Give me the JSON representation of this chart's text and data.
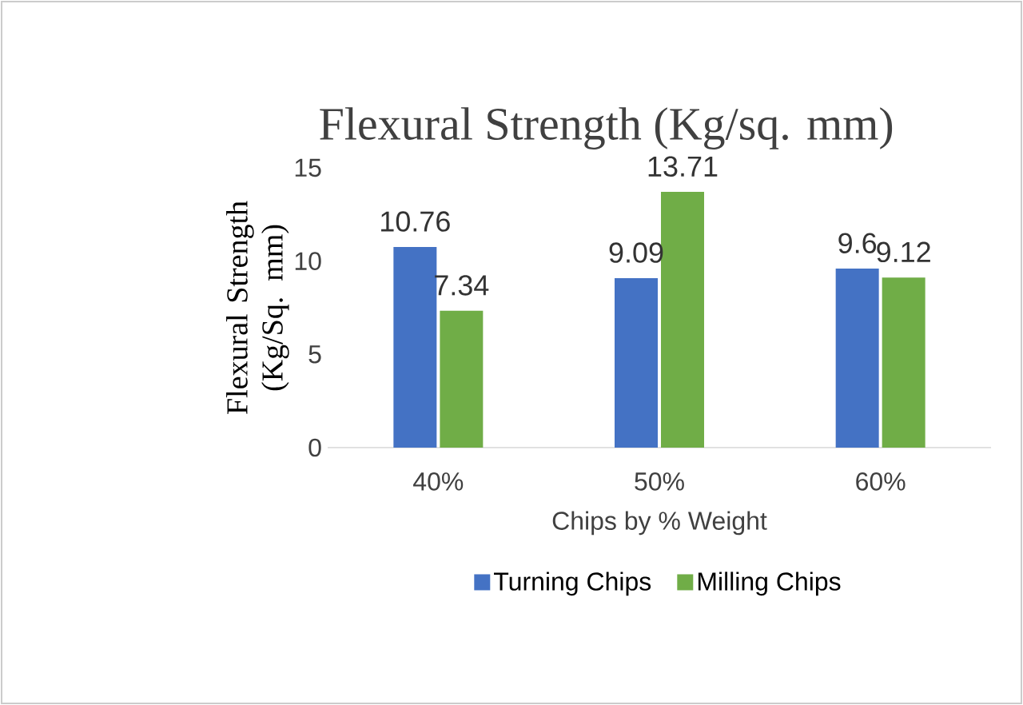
{
  "chart_data": {
    "type": "bar",
    "title": "Flexural Strength (Kg/sq. mm)",
    "xlabel": "Chips by % Weight",
    "ylabel": "Flexural Strength (Kg/Sq. mm)",
    "categories": [
      "40%",
      "50%",
      "60%"
    ],
    "series": [
      {
        "name": "Turning Chips",
        "color": "#4472c4",
        "values": [
          10.76,
          9.09,
          9.6
        ]
      },
      {
        "name": "Milling Chips",
        "color": "#70ad47",
        "values": [
          7.34,
          13.71,
          9.12
        ]
      }
    ],
    "ylim": [
      0,
      15
    ],
    "yticks": [
      0,
      5,
      10,
      15
    ],
    "data_labels": true,
    "legend": "bottom",
    "grid": false
  }
}
